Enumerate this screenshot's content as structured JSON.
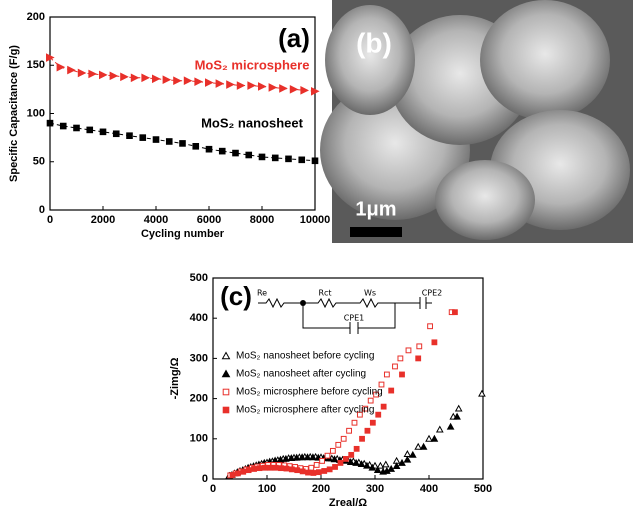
{
  "chart_data": [
    {
      "type": "line",
      "title": "(a)",
      "xlabel": "Cycling number",
      "ylabel": "Specific Capacitance (F/g)",
      "xlim": [
        0,
        10000
      ],
      "xticks": [
        0,
        2000,
        4000,
        6000,
        8000,
        10000
      ],
      "ylim": [
        0,
        200
      ],
      "yticks": [
        0,
        50,
        100,
        150,
        200
      ],
      "series": [
        {
          "name": "MoS₂ microsphere",
          "color": "#e8302a",
          "marker": "triangle-right",
          "x": [
            0,
            400,
            800,
            1200,
            1600,
            2000,
            2400,
            2800,
            3200,
            3600,
            4000,
            4400,
            4800,
            5200,
            5600,
            6000,
            6400,
            6800,
            7200,
            7600,
            8000,
            8400,
            8800,
            9200,
            9600,
            10000
          ],
          "values": [
            158,
            148,
            145,
            142,
            141,
            140,
            139,
            138,
            137,
            137,
            136,
            135,
            134,
            134,
            133,
            132,
            131,
            130,
            129,
            129,
            128,
            127,
            126,
            125,
            124,
            123
          ]
        },
        {
          "name": "MoS₂ nanosheet",
          "color": "#000000",
          "marker": "square",
          "x": [
            0,
            500,
            1000,
            1500,
            2000,
            2500,
            3000,
            3500,
            4000,
            4500,
            5000,
            5500,
            6000,
            6500,
            7000,
            7500,
            8000,
            8500,
            9000,
            9500,
            10000
          ],
          "values": [
            90,
            87,
            85,
            83,
            81,
            79,
            77,
            75,
            73,
            71,
            69,
            66,
            63,
            61,
            59,
            57,
            55,
            54,
            53,
            52,
            51
          ]
        }
      ]
    },
    {
      "type": "image",
      "title": "(b)",
      "scale_bar": "1μm"
    },
    {
      "type": "scatter",
      "title": "(c)",
      "xlabel": "Zreal/Ω",
      "ylabel": "-Zimg/Ω",
      "xlim": [
        0,
        500
      ],
      "xticks": [
        0,
        100,
        200,
        300,
        400,
        500
      ],
      "ylim": [
        0,
        500
      ],
      "yticks": [
        0,
        100,
        200,
        300,
        400,
        500
      ],
      "circuit_labels": [
        "Re",
        "Rct",
        "Ws",
        "CPE2",
        "CPE1"
      ],
      "series": [
        {
          "name": "MoS₂ nanosheet before cycling",
          "color": "#000000",
          "marker": "triangle-open",
          "x": [
            30,
            40,
            50,
            60,
            70,
            80,
            90,
            100,
            110,
            120,
            130,
            140,
            150,
            160,
            170,
            180,
            190,
            200,
            210,
            220,
            230,
            240,
            250,
            260,
            270,
            280,
            290,
            300,
            310,
            320,
            340,
            360,
            380,
            400,
            420,
            445,
            455,
            498
          ],
          "values": [
            8,
            14,
            20,
            25,
            30,
            34,
            38,
            41,
            44,
            47,
            50,
            52,
            53,
            54,
            55,
            55,
            55,
            54,
            53,
            51,
            50,
            48,
            46,
            44,
            41,
            38,
            35,
            33,
            33,
            36,
            45,
            62,
            80,
            100,
            123,
            155,
            175,
            212
          ]
        },
        {
          "name": "MoS₂ nanosheet after cycling",
          "color": "#000000",
          "marker": "triangle",
          "x": [
            35,
            45,
            55,
            65,
            75,
            85,
            95,
            105,
            115,
            125,
            135,
            145,
            155,
            165,
            175,
            185,
            195,
            205,
            215,
            225,
            235,
            245,
            255,
            265,
            275,
            285,
            295,
            305,
            315,
            322,
            330,
            340,
            350,
            360,
            370,
            390,
            410,
            440,
            452
          ],
          "values": [
            10,
            17,
            22,
            28,
            32,
            36,
            40,
            43,
            46,
            48,
            50,
            52,
            53,
            54,
            54,
            54,
            53,
            52,
            51,
            49,
            47,
            45,
            42,
            40,
            37,
            33,
            28,
            22,
            18,
            20,
            25,
            32,
            40,
            48,
            60,
            80,
            100,
            130,
            155
          ]
        },
        {
          "name": "MoS₂ microsphere before cycling",
          "color": "#e8302a",
          "marker": "square-open",
          "x": [
            32,
            42,
            52,
            62,
            72,
            82,
            92,
            102,
            112,
            122,
            132,
            142,
            152,
            162,
            172,
            182,
            192,
            202,
            212,
            222,
            232,
            242,
            252,
            262,
            272,
            282,
            292,
            302,
            312,
            322,
            337,
            347,
            362,
            382,
            402,
            442
          ],
          "values": [
            9,
            14,
            19,
            24,
            28,
            31,
            33,
            35,
            35,
            35,
            34,
            32,
            30,
            27,
            25,
            28,
            35,
            45,
            58,
            70,
            85,
            100,
            120,
            140,
            160,
            175,
            195,
            210,
            235,
            260,
            280,
            300,
            320,
            330,
            380,
            415
          ]
        },
        {
          "name": "MoS₂ microsphere after cycling",
          "color": "#e8302a",
          "marker": "square",
          "x": [
            36,
            46,
            56,
            66,
            76,
            86,
            96,
            106,
            116,
            126,
            136,
            146,
            156,
            166,
            176,
            186,
            196,
            206,
            216,
            226,
            236,
            246,
            256,
            266,
            276,
            286,
            296,
            306,
            316,
            330,
            350,
            380,
            410,
            448
          ],
          "values": [
            10,
            14,
            18,
            22,
            25,
            27,
            28,
            28,
            28,
            27,
            26,
            24,
            22,
            19,
            16,
            15,
            17,
            20,
            24,
            30,
            40,
            50,
            60,
            75,
            100,
            120,
            140,
            160,
            180,
            220,
            260,
            300,
            340,
            415
          ]
        }
      ]
    }
  ]
}
